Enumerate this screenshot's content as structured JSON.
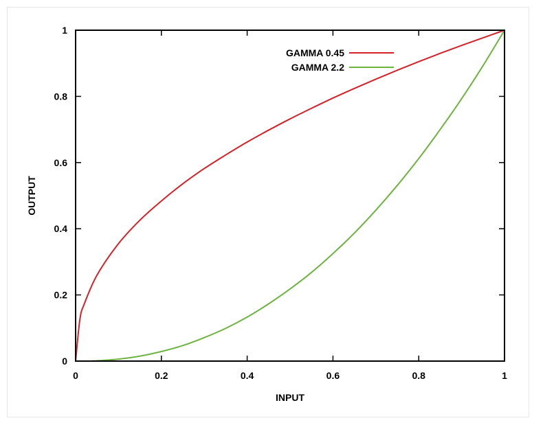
{
  "chart_data": {
    "type": "line",
    "title": "",
    "xlabel": "INPUT",
    "ylabel": "OUTPUT",
    "xlim": [
      0,
      1
    ],
    "ylim": [
      0,
      1
    ],
    "xticks": [
      0,
      0.2,
      0.4,
      0.6,
      0.8,
      1
    ],
    "yticks": [
      0,
      0.2,
      0.4,
      0.6,
      0.8,
      1
    ],
    "xtick_labels": [
      "0",
      "0.2",
      "0.4",
      "0.6",
      "0.8",
      "1"
    ],
    "ytick_labels": [
      "0",
      "0.2",
      "0.4",
      "0.6",
      "0.8",
      "1"
    ],
    "grid": false,
    "legend": "top-center",
    "series": [
      {
        "name": "GAMMA 0.45",
        "color": "#d62027",
        "x": [
          0,
          0.01,
          0.02,
          0.05,
          0.1,
          0.15,
          0.2,
          0.25,
          0.3,
          0.35,
          0.4,
          0.45,
          0.5,
          0.55,
          0.6,
          0.65,
          0.7,
          0.75,
          0.8,
          0.85,
          0.9,
          0.95,
          1
        ],
        "y": [
          0,
          0.126,
          0.172,
          0.26,
          0.355,
          0.426,
          0.484,
          0.536,
          0.582,
          0.623,
          0.662,
          0.698,
          0.732,
          0.764,
          0.795,
          0.824,
          0.852,
          0.879,
          0.905,
          0.93,
          0.954,
          0.977,
          1
        ]
      },
      {
        "name": "GAMMA 2.2",
        "color": "#6db33f",
        "x": [
          0.04,
          0.05,
          0.1,
          0.15,
          0.2,
          0.25,
          0.3,
          0.35,
          0.4,
          0.45,
          0.5,
          0.55,
          0.6,
          0.65,
          0.7,
          0.75,
          0.8,
          0.85,
          0.9,
          0.95,
          1
        ],
        "y": [
          0.001,
          0.001,
          0.006,
          0.015,
          0.029,
          0.047,
          0.071,
          0.099,
          0.133,
          0.173,
          0.218,
          0.268,
          0.325,
          0.387,
          0.456,
          0.531,
          0.612,
          0.7,
          0.793,
          0.893,
          1
        ]
      }
    ]
  }
}
